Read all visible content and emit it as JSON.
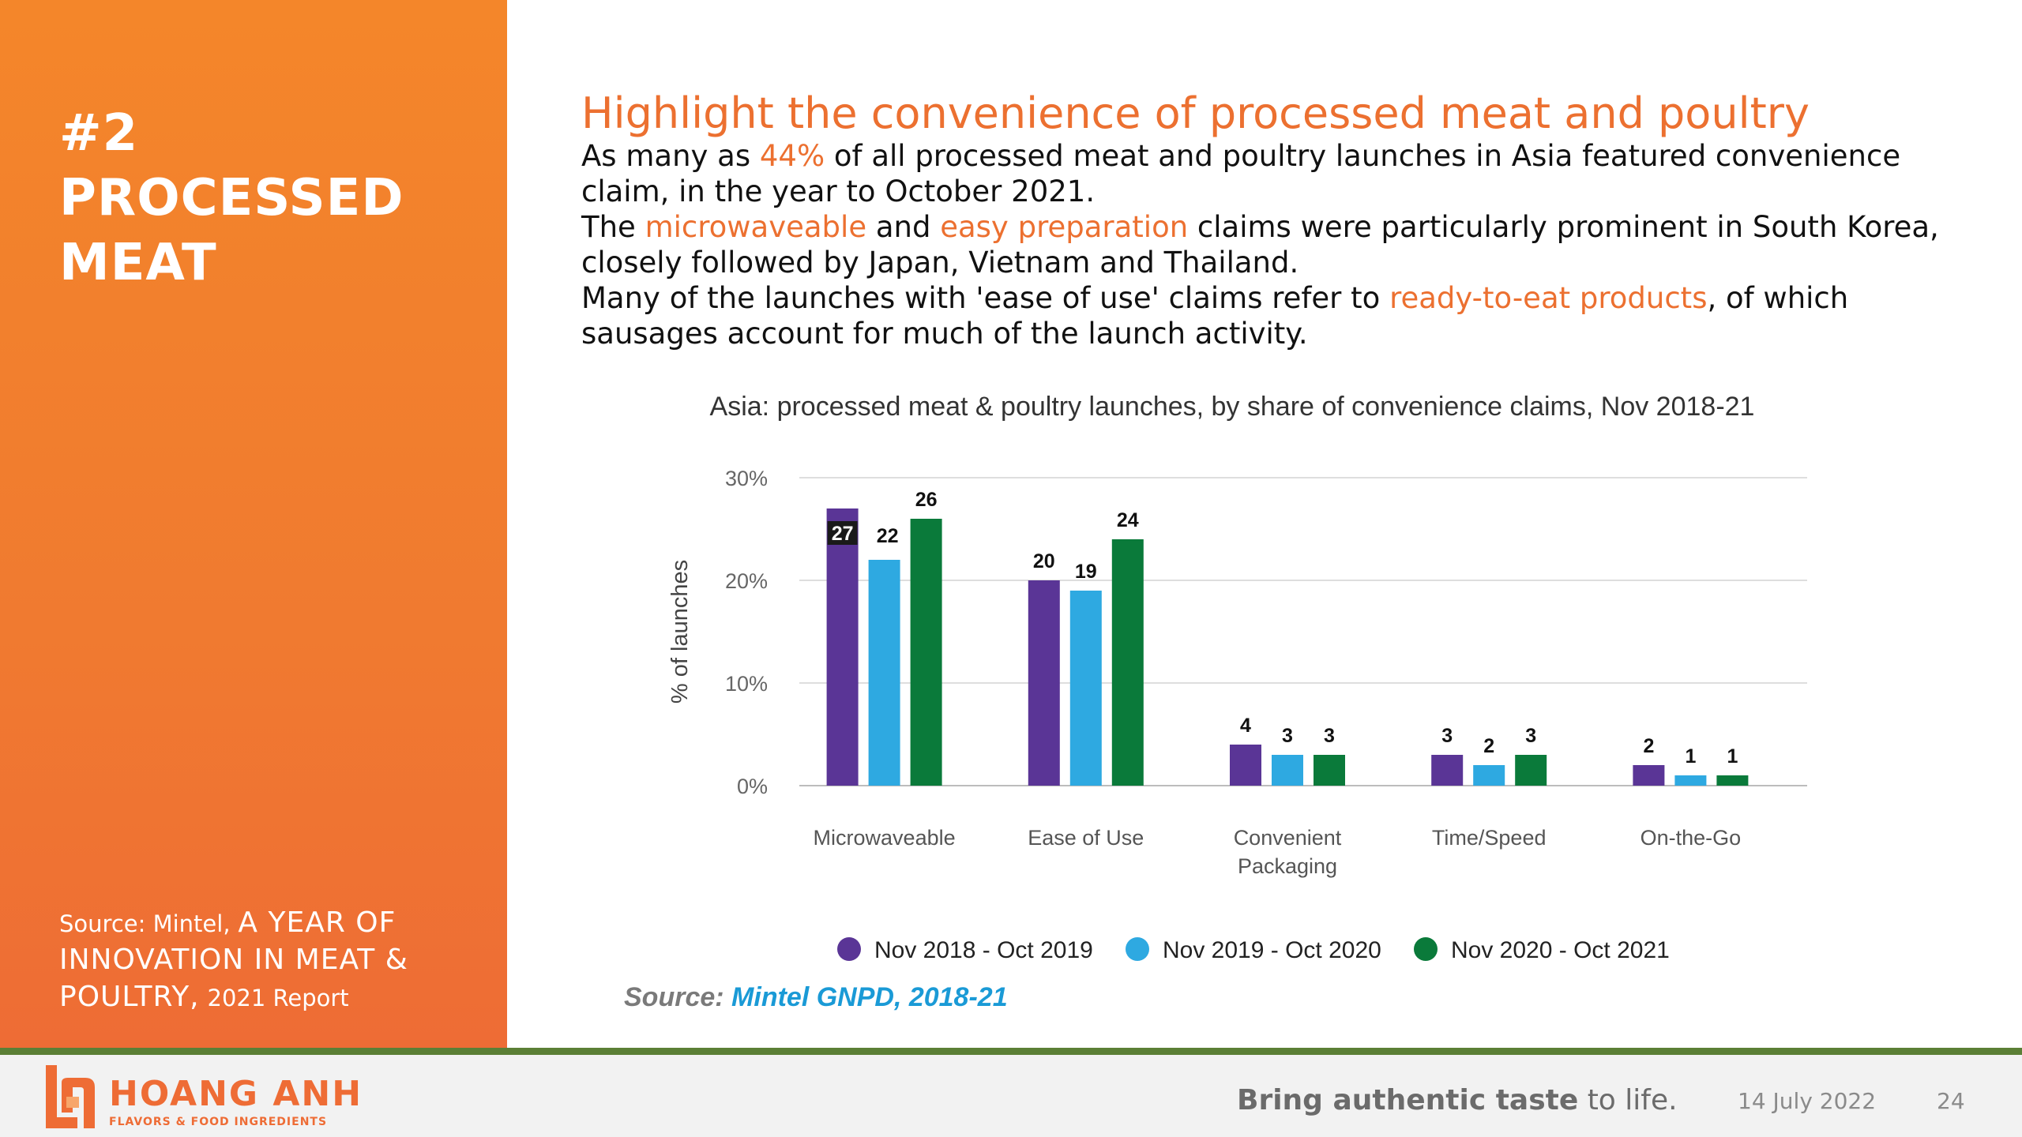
{
  "sidebar": {
    "section_number": "#2",
    "section_line1": "PROCESSED",
    "section_line2": "MEAT",
    "source_prefix": "Source: Mintel,",
    "source_title": "A YEAR OF INNOVATION IN MEAT & POULTRY,",
    "source_suffix": "2021 Report"
  },
  "main": {
    "headline": "Highlight the convenience of processed meat and poultry",
    "p1_a": "As many as ",
    "p1_hl": "44%",
    "p1_b": " of all processed meat and poultry launches in Asia featured convenience claim, in the year to October 2021.",
    "p2_a": "The ",
    "p2_hl1": "microwaveable",
    "p2_b": " and ",
    "p2_hl2": "easy preparation",
    "p2_c": " claims were particularly prominent in South Korea, closely followed by Japan, Vietnam and Thailand.",
    "p3_a": "Many of the launches with 'ease of use' claims refer to ",
    "p3_hl": "ready-to-eat products",
    "p3_b": ", of which sausages account for much of the launch activity."
  },
  "chart_data": {
    "type": "bar",
    "title": "Asia: processed meat & poultry launches, by share of convenience claims, Nov 2018-21",
    "ylabel": "% of launches",
    "ylim": [
      0,
      30
    ],
    "yticks": [
      "0%",
      "10%",
      "20%",
      "30%"
    ],
    "categories": [
      [
        "Microwaveable"
      ],
      [
        "Ease of Use"
      ],
      [
        "Convenient",
        "Packaging"
      ],
      [
        "Time/Speed"
      ],
      [
        "On-the-Go"
      ]
    ],
    "series": [
      {
        "name": "Nov 2018 - Oct 2019",
        "color": "#5a3596",
        "values": [
          27,
          20,
          4,
          3,
          2
        ]
      },
      {
        "name": "Nov 2019 - Oct 2020",
        "color": "#2ea9e1",
        "values": [
          22,
          19,
          3,
          2,
          1
        ]
      },
      {
        "name": "Nov 2020 - Oct 2021",
        "color": "#0a7a3a",
        "values": [
          26,
          24,
          3,
          3,
          1
        ]
      }
    ],
    "grid": true,
    "legend_position": "bottom"
  },
  "chart_source": {
    "label": "Source:",
    "value": "Mintel GNPD, 2018-21"
  },
  "footer": {
    "brand_name": "HOANG ANH",
    "brand_sub": "FLAVORS & FOOD INGREDIENTS",
    "tagline_bold": "Bring authentic taste",
    "tagline_rest": " to life.",
    "date": "14 July 2022",
    "page_number": "24"
  },
  "colors": {
    "accent": "#ec7030",
    "sidebar": "#f07a30",
    "divider": "#5b7f36"
  }
}
